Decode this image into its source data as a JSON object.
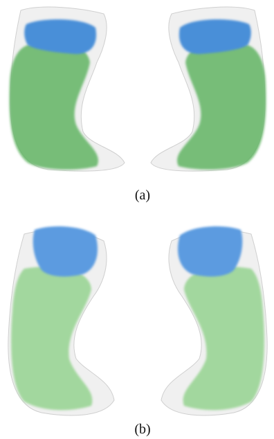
{
  "panels": [
    {
      "caption": "(a)"
    },
    {
      "caption": "(b)"
    }
  ]
}
